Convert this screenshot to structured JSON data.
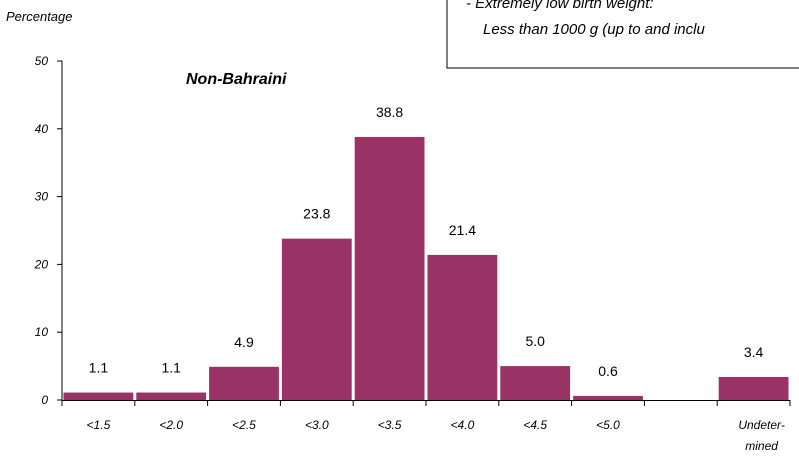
{
  "chart_data": {
    "type": "bar",
    "ylabel": "Percentage",
    "ylim": [
      0,
      50
    ],
    "yticks": [
      "0",
      "10",
      "20",
      "30",
      "40",
      "50"
    ],
    "categories": [
      "<1.5",
      "<2.0",
      "<2.5",
      "<3.0",
      "<3.5",
      "<4.0",
      "<4.5",
      "<5.0",
      "",
      "Undeter-|mined"
    ],
    "values": [
      1.1,
      1.1,
      4.9,
      23.8,
      38.8,
      21.4,
      5.0,
      0.6,
      null,
      3.4
    ],
    "data_labels": [
      "1.1",
      "1.1",
      "4.9",
      "23.8",
      "38.8",
      "21.4",
      "5.0",
      "0.6",
      "",
      "3.4"
    ],
    "series": [
      {
        "name": "Non-Bahraini"
      }
    ],
    "bar_color": "#993366",
    "grid": false
  },
  "note": {
    "line1": "- Extremely low birth weight:",
    "line2": "Less than 1000 g (up to and inclu"
  }
}
